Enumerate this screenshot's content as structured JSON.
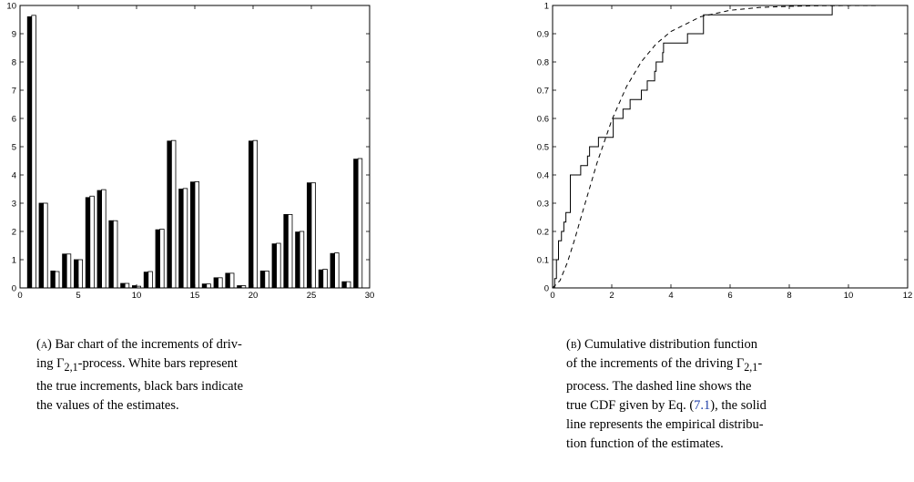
{
  "chart_data": [
    {
      "type": "bar",
      "title": "",
      "xlabel": "",
      "ylabel": "",
      "xlim": [
        0,
        30
      ],
      "ylim": [
        0,
        10
      ],
      "xticks": [
        0,
        5,
        10,
        15,
        20,
        25,
        30
      ],
      "yticks": [
        0,
        1,
        2,
        3,
        4,
        5,
        6,
        7,
        8,
        9,
        10
      ],
      "categories": [
        1,
        2,
        3,
        4,
        5,
        6,
        7,
        8,
        9,
        10,
        11,
        12,
        13,
        14,
        15,
        16,
        17,
        18,
        19,
        20,
        21,
        22,
        23,
        24,
        25,
        26,
        27,
        28,
        29
      ],
      "series": [
        {
          "name": "estimates",
          "color": "#000000",
          "values": [
            9.6,
            3.0,
            0.6,
            1.2,
            1.0,
            3.2,
            3.45,
            2.38,
            0.16,
            0.08,
            0.56,
            2.06,
            5.2,
            3.5,
            3.75,
            0.14,
            0.36,
            0.52,
            0.08,
            5.2,
            0.6,
            1.56,
            2.6,
            1.98,
            3.72,
            0.64,
            1.22,
            0.22,
            4.56
          ]
        },
        {
          "name": "true increments",
          "color": "#ffffff",
          "values": [
            9.65,
            3.0,
            0.58,
            1.2,
            1.0,
            3.25,
            3.48,
            2.38,
            0.16,
            0.06,
            0.58,
            2.08,
            5.22,
            3.52,
            3.76,
            0.14,
            0.36,
            0.52,
            0.08,
            5.22,
            0.6,
            1.58,
            2.6,
            2.0,
            3.72,
            0.66,
            1.24,
            0.22,
            4.58
          ]
        }
      ],
      "grid": false,
      "legend": "none"
    },
    {
      "type": "line",
      "title": "",
      "xlabel": "",
      "ylabel": "",
      "xlim": [
        0,
        12
      ],
      "ylim": [
        0,
        1
      ],
      "xticks": [
        0,
        2,
        4,
        6,
        8,
        10,
        12
      ],
      "yticks": [
        0,
        0.1,
        0.2,
        0.3,
        0.4,
        0.5,
        0.6,
        0.7,
        0.8,
        0.9,
        1
      ],
      "series": [
        {
          "name": "empirical distribution function of the estimates",
          "style": "solid-step",
          "x": [
            0.0,
            0.07,
            0.13,
            0.2,
            0.3,
            0.38,
            0.45,
            0.6,
            0.95,
            1.18,
            1.25,
            1.55,
            2.05,
            2.38,
            2.62,
            3.0,
            3.2,
            3.45,
            3.5,
            3.72,
            3.75,
            4.56,
            5.1,
            9.45,
            12.0
          ],
          "y": [
            0.0,
            0.033,
            0.1,
            0.167,
            0.2,
            0.233,
            0.267,
            0.4,
            0.433,
            0.467,
            0.5,
            0.533,
            0.6,
            0.633,
            0.667,
            0.7,
            0.733,
            0.767,
            0.8,
            0.833,
            0.867,
            0.9,
            0.967,
            1.0,
            1.0
          ]
        },
        {
          "name": "true CDF",
          "style": "dashed",
          "x": [
            0,
            0.25,
            0.5,
            0.75,
            1,
            1.5,
            2,
            2.5,
            3,
            3.5,
            4,
            5,
            6,
            7,
            8,
            9,
            10,
            11,
            12
          ],
          "y": [
            0,
            0.026,
            0.09,
            0.173,
            0.264,
            0.442,
            0.594,
            0.713,
            0.801,
            0.864,
            0.908,
            0.96,
            0.983,
            0.993,
            0.997,
            0.999,
            0.9995,
            0.9998,
            0.9999
          ]
        }
      ],
      "grid": false,
      "legend": "none"
    }
  ],
  "captions": {
    "a": {
      "tag": "(a)",
      "text_1": "Bar chart of the increments of driv-",
      "text_2": "ing Γ",
      "sub": "2,1",
      "text_3": "-process. White bars represent",
      "text_4": "the true increments, black bars indicate",
      "text_5": "the values of the estimates."
    },
    "b": {
      "tag": "(b)",
      "text_1": "Cumulative distribution function",
      "text_2": "of the increments of the driving Γ",
      "sub": "2,1",
      "text_3": "-",
      "text_4": "process. The dashed line shows the",
      "text_5": "true CDF given by Eq. (",
      "ref": "7.1",
      "text_6": "), the solid",
      "text_7": "line represents the empirical distribu-",
      "text_8": "tion function of the estimates."
    }
  }
}
